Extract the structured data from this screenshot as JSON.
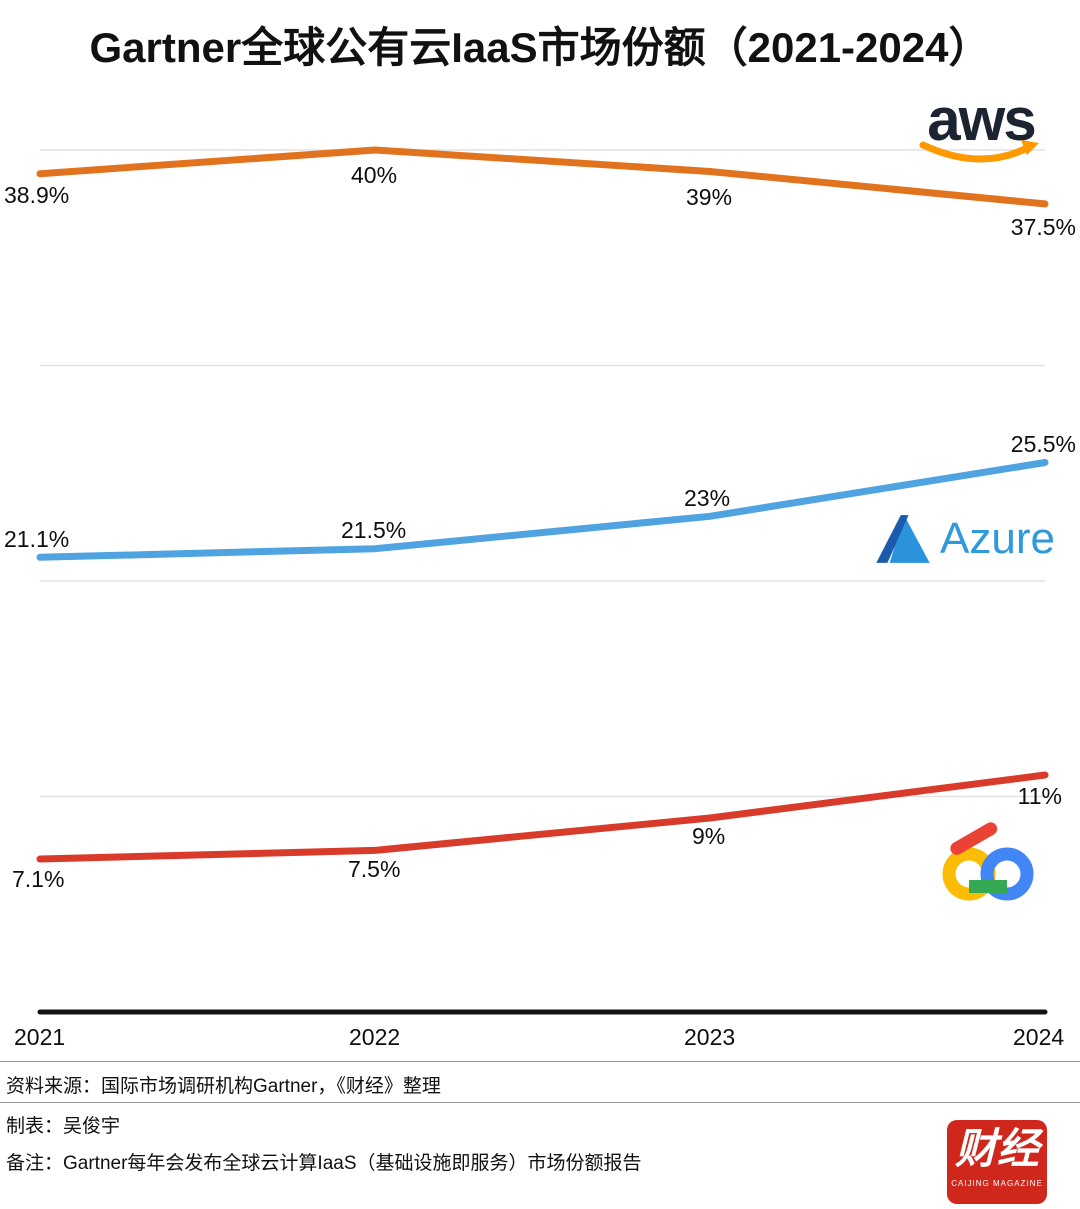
{
  "title": "Gartner全球公有云IaaS市场份额（2021-2024）",
  "chart_data": {
    "type": "line",
    "x": [
      2021,
      2022,
      2023,
      2024
    ],
    "x_tick_labels": [
      "2021",
      "2022",
      "2023",
      "2024"
    ],
    "series": [
      {
        "name": "AWS",
        "color": "#E2731E",
        "values": [
          38.9,
          40,
          39,
          37.5
        ],
        "point_labels": [
          "38.9%",
          "40%",
          "39%",
          "37.5%"
        ]
      },
      {
        "name": "Azure",
        "color": "#4FA3E1",
        "values": [
          21.1,
          21.5,
          23,
          25.5
        ],
        "point_labels": [
          "21.1%",
          "21.5%",
          "23%",
          "25.5%"
        ]
      },
      {
        "name": "Google Cloud",
        "color": "#D93B2B",
        "values": [
          7.1,
          7.5,
          9,
          11
        ],
        "point_labels": [
          "7.1%",
          "7.5%",
          "9%",
          "11%"
        ]
      }
    ],
    "ylim": [
      0,
      47
    ],
    "gridline_values": [
      10,
      20,
      30,
      40
    ],
    "grid_color": "#E2E2E2",
    "axis_color": "#141414",
    "grid": "horizontal",
    "legend": "brand logos placed at the right end of each line"
  },
  "logos": {
    "aws_text": "aws",
    "aws_smile_color": "#FF9900",
    "azure_text": "Azure",
    "azure_blue": "#2A93DC",
    "azure_dark_blue": "#1A5CAB",
    "google_red": "#EA4335",
    "google_yellow": "#FBBC05",
    "google_green": "#34A853",
    "google_blue": "#4285F4",
    "caijing_text": "财经",
    "caijing_sub": "CAIJING MAGAZINE",
    "caijing_red": "#D0271C"
  },
  "footer": {
    "source": "资料来源：国际市场调研机构Gartner，《财经》整理",
    "author": "制表：吴俊宇",
    "note": "备注：Gartner每年会发布全球云计算IaaS（基础设施即服务）市场份额报告"
  }
}
